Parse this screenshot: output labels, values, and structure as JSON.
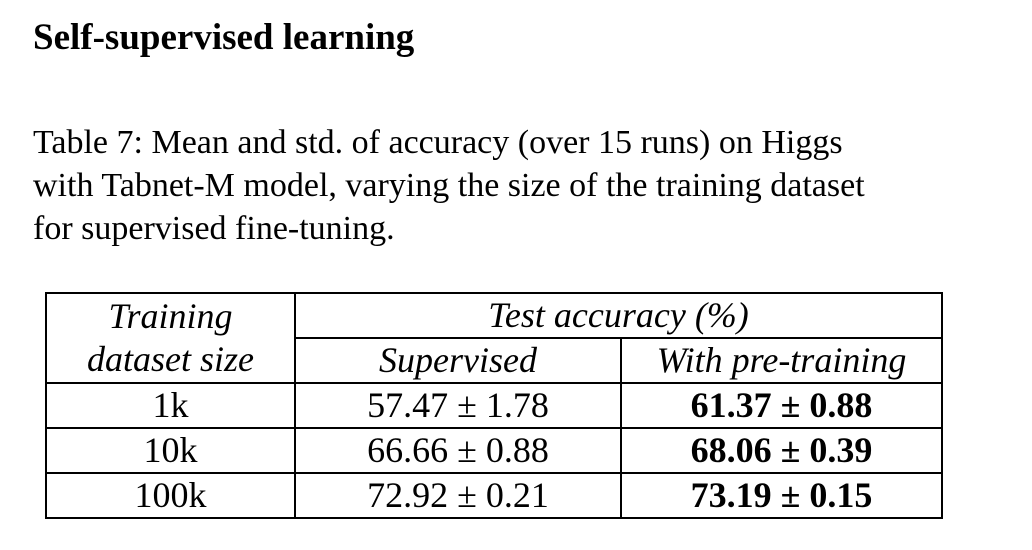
{
  "section": {
    "heading": "Self-supervised learning"
  },
  "caption": {
    "lines": [
      "Table 7: Mean and std. of accuracy (over 15 runs) on Higgs",
      "with Tabnet-M model, varying the size of the training dataset",
      "for supervised fine-tuning."
    ]
  },
  "table": {
    "header": {
      "size_col_line1": "Training",
      "size_col_line2": "dataset size",
      "group": "Test accuracy (%)",
      "col_supervised": "Supervised",
      "col_pretraining": "With pre-training"
    },
    "rows": [
      {
        "size": "1k",
        "supervised": "57.47 ± 1.78",
        "pretraining": "61.37 ± 0.88"
      },
      {
        "size": "10k",
        "supervised": "66.66 ± 0.88",
        "pretraining": "68.06 ± 0.39"
      },
      {
        "size": "100k",
        "supervised": "72.92 ± 0.21",
        "pretraining": "73.19 ± 0.15"
      }
    ]
  }
}
